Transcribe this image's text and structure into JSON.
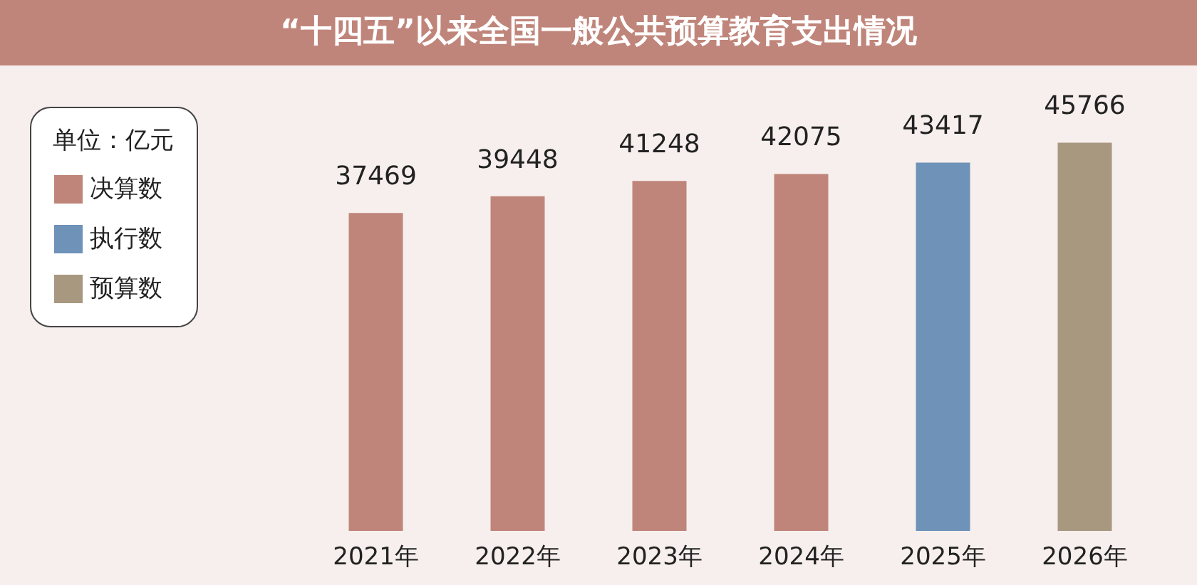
{
  "chart_data": {
    "type": "bar",
    "title": "“十四五”以来全国一般公共预算教育支出情况",
    "legend_title": "单位：亿元",
    "categories": [
      "2021年",
      "2022年",
      "2023年",
      "2024年",
      "2025年",
      "2026年"
    ],
    "series": [
      {
        "name": "决算数",
        "color": "#c0857a",
        "values": [
          37469,
          39448,
          41248,
          42075,
          null,
          null
        ]
      },
      {
        "name": "执行数",
        "color": "#6f92b8",
        "values": [
          null,
          null,
          null,
          null,
          43417,
          null
        ]
      },
      {
        "name": "预算数",
        "color": "#a89880",
        "values": [
          null,
          null,
          null,
          null,
          null,
          45766
        ]
      }
    ],
    "data_labels": true,
    "legend": "left",
    "grid": false
  }
}
